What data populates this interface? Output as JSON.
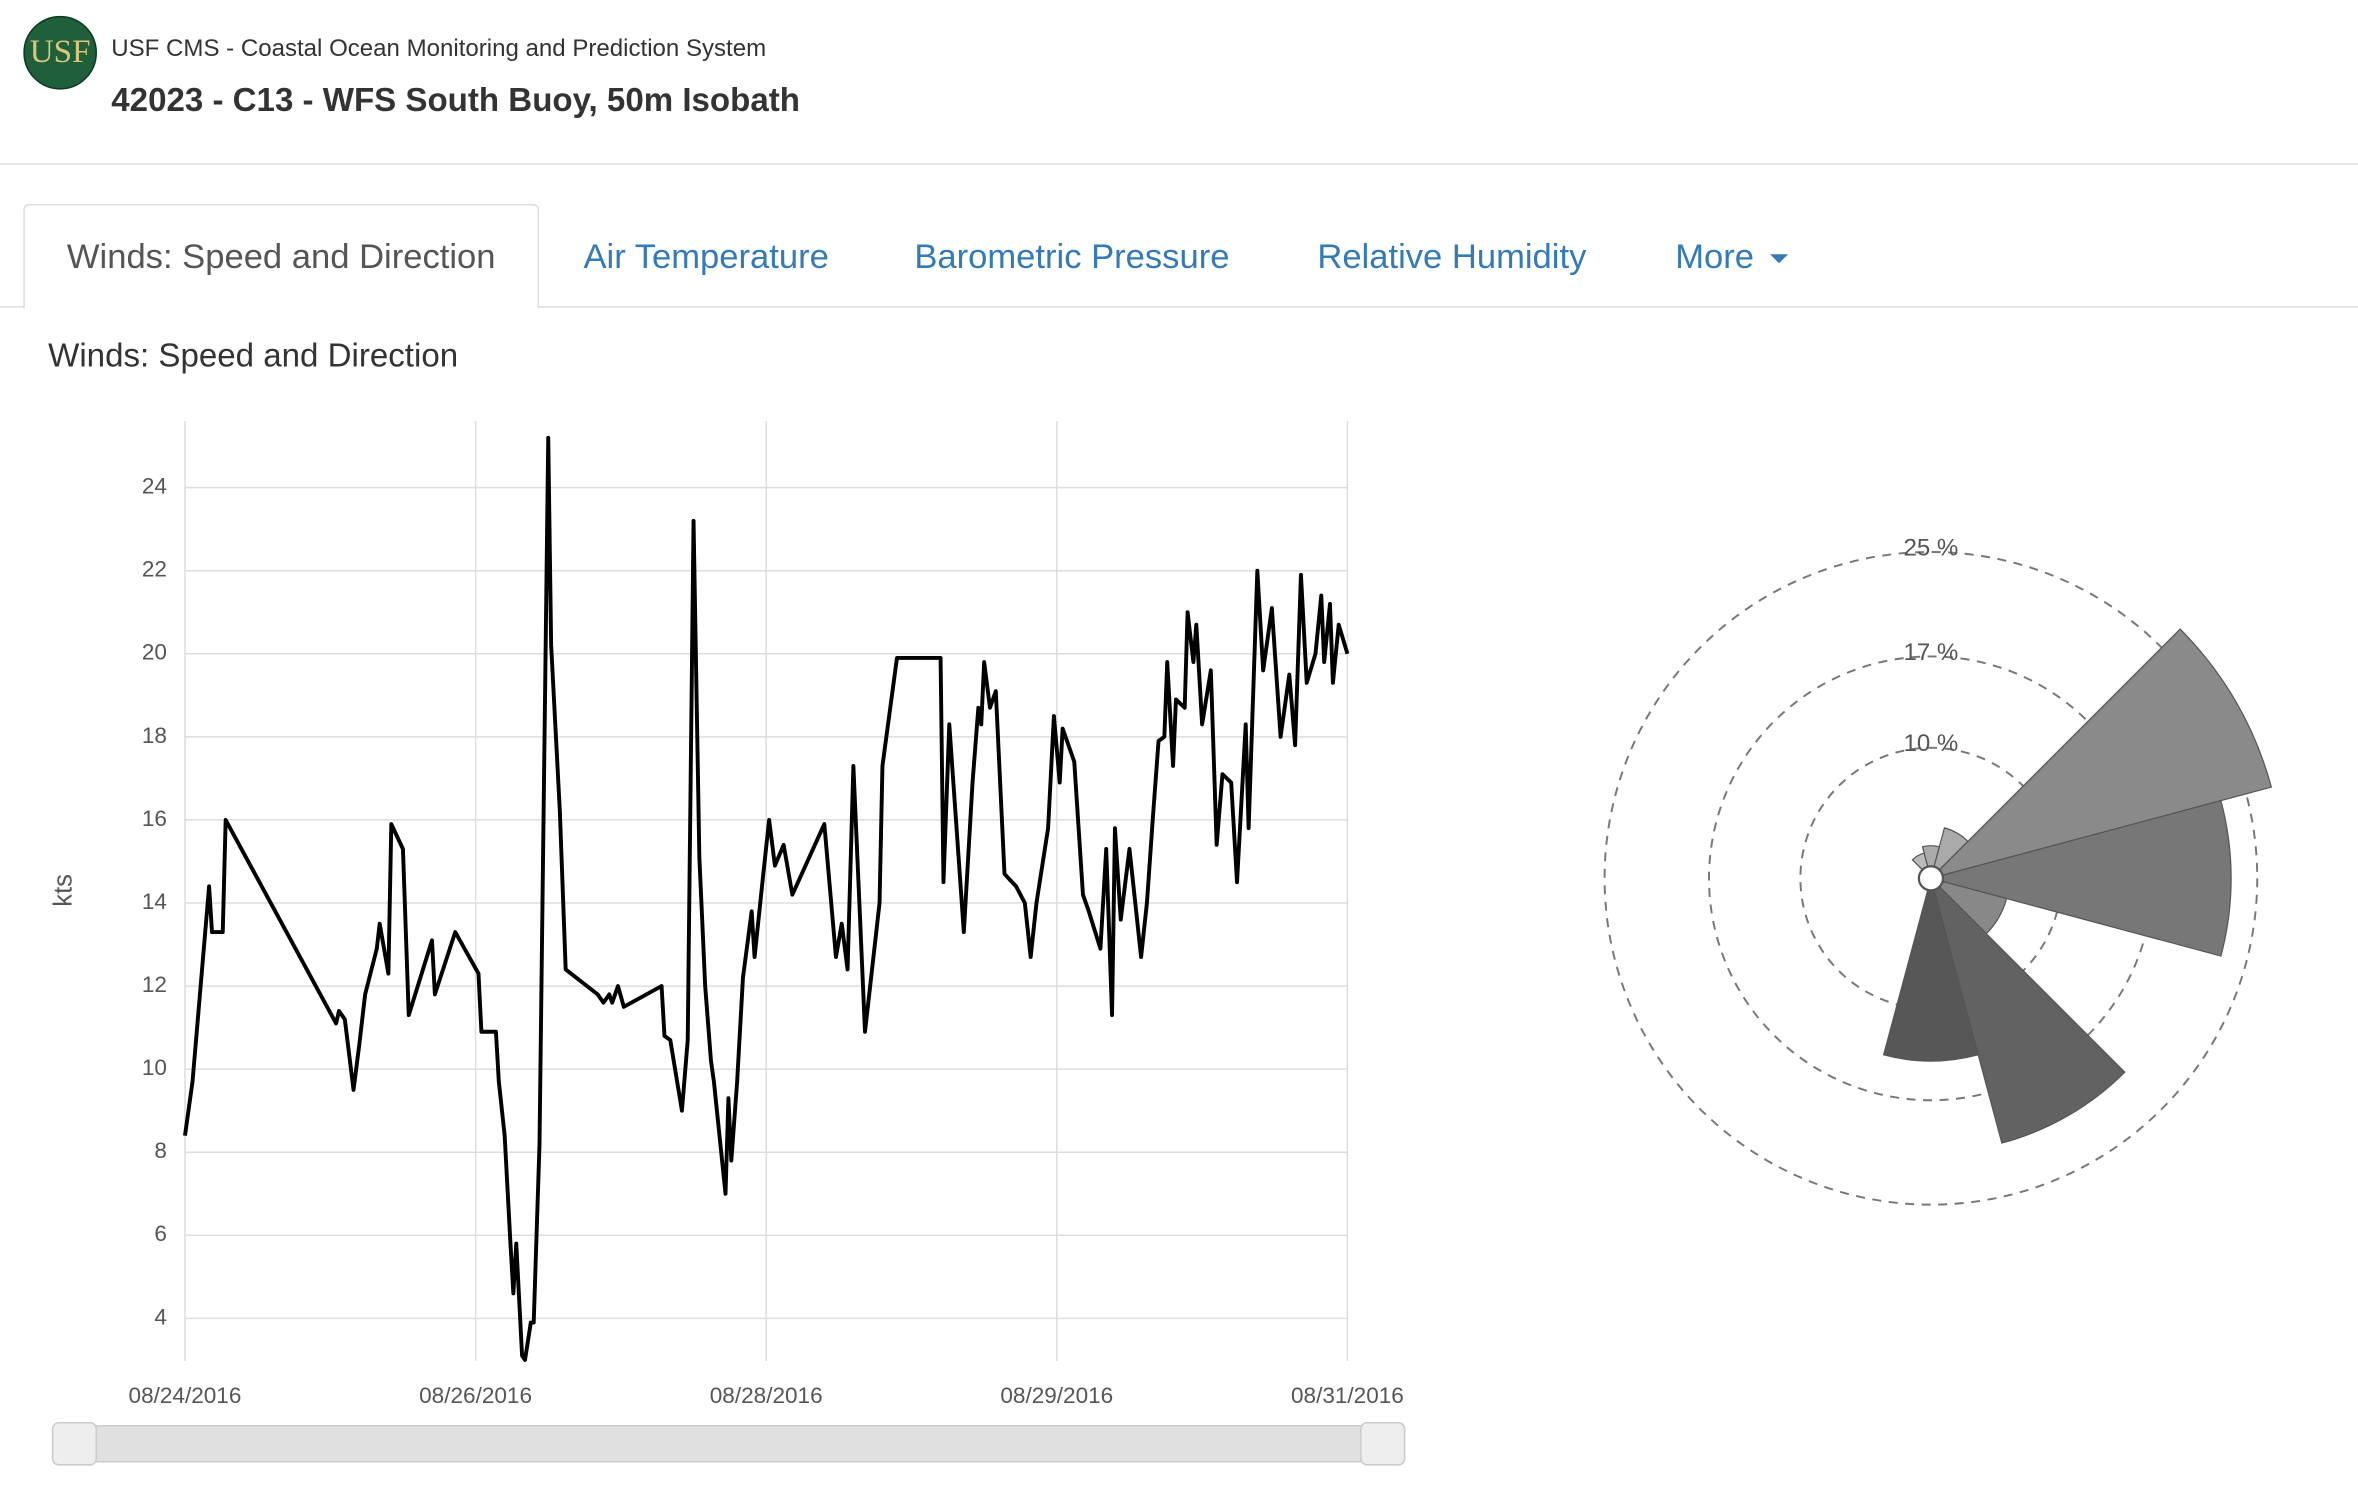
{
  "header": {
    "logo": "USF",
    "org": "USF CMS - Coastal Ocean Monitoring and Prediction System",
    "station": "42023 - C13 - WFS South Buoy, 50m Isobath"
  },
  "tabs": [
    "Winds: Speed and Direction",
    "Air Temperature",
    "Barometric Pressure",
    "Relative Humidity",
    "More"
  ],
  "section_title": "Winds: Speed and Direction",
  "chart_data": [
    {
      "type": "line",
      "ylabel": "kts",
      "x": [
        0,
        0.026,
        0.083,
        0.093,
        0.13,
        0.14,
        0.52,
        0.53,
        0.55,
        0.58,
        0.6,
        0.62,
        0.66,
        0.67,
        0.7,
        0.71,
        0.75,
        0.77,
        0.85,
        0.86,
        0.93,
        1.01,
        1.02,
        1.07,
        1.08,
        1.1,
        1.12,
        1.13,
        1.14,
        1.16,
        1.17,
        1.19,
        1.2,
        1.22,
        1.25,
        1.26,
        1.29,
        1.31,
        1.42,
        1.44,
        1.46,
        1.47,
        1.49,
        1.51,
        1.64,
        1.65,
        1.67,
        1.71,
        1.73,
        1.75,
        1.77,
        1.79,
        1.81,
        1.82,
        1.86,
        1.87,
        1.88,
        1.9,
        1.92,
        1.95,
        1.96,
        1.99,
        2.01,
        2.03,
        2.06,
        2.09,
        2.2,
        2.24,
        2.26,
        2.28,
        2.3,
        2.34,
        2.39,
        2.4,
        2.45,
        2.6,
        2.61,
        2.63,
        2.68,
        2.71,
        2.73,
        2.74,
        2.75,
        2.77,
        2.79,
        2.82,
        2.86,
        2.89,
        2.91,
        2.93,
        2.97,
        2.99,
        3.01,
        3.02,
        3.06,
        3.09,
        3.11,
        3.15,
        3.17,
        3.19,
        3.2,
        3.22,
        3.25,
        3.29,
        3.31,
        3.33,
        3.35,
        3.37,
        3.38,
        3.4,
        3.41,
        3.44,
        3.45,
        3.47,
        3.48,
        3.5,
        3.53,
        3.55,
        3.57,
        3.6,
        3.62,
        3.65,
        3.66,
        3.69,
        3.71,
        3.74,
        3.77,
        3.8,
        3.82,
        3.84,
        3.86,
        3.89,
        3.91,
        3.92,
        3.94,
        3.95,
        3.97,
        4
      ],
      "series": [
        {
          "color": "#000000",
          "values": [
            8.4,
            9.7,
            14.4,
            13.3,
            13.3,
            16.0,
            11.1,
            11.4,
            11.2,
            9.5,
            10.6,
            11.8,
            12.9,
            13.5,
            12.3,
            15.9,
            15.3,
            11.3,
            13.1,
            11.8,
            13.3,
            12.3,
            10.9,
            10.9,
            9.7,
            8.4,
            5.8,
            4.6,
            5.8,
            3.1,
            3.0,
            3.9,
            3.9,
            8.2,
            25.2,
            20.2,
            16.2,
            12.4,
            11.8,
            11.6,
            11.8,
            11.6,
            12.0,
            11.5,
            12.0,
            10.8,
            10.7,
            9.0,
            10.7,
            23.2,
            15.1,
            12.0,
            10.2,
            9.7,
            7.0,
            9.3,
            7.8,
            9.7,
            12.2,
            13.8,
            12.7,
            14.7,
            16.0,
            14.9,
            15.4,
            14.2,
            15.9,
            12.7,
            13.5,
            12.4,
            17.3,
            10.9,
            14.0,
            17.3,
            19.9,
            19.9,
            14.5,
            18.3,
            13.3,
            16.9,
            18.7,
            18.3,
            19.8,
            18.7,
            19.1,
            14.7,
            14.4,
            14.0,
            12.7,
            14.0,
            15.8,
            18.5,
            16.9,
            18.2,
            17.4,
            14.2,
            13.8,
            12.9,
            15.3,
            11.3,
            15.8,
            13.6,
            15.3,
            12.7,
            14.0,
            16.0,
            17.9,
            18.0,
            19.8,
            17.3,
            18.9,
            18.7,
            21.0,
            19.8,
            20.7,
            18.3,
            19.6,
            15.4,
            17.1,
            16.9,
            14.5,
            18.3,
            15.8,
            22.0,
            19.6,
            21.1,
            18.0,
            19.5,
            17.8,
            21.9,
            19.3,
            20.0,
            21.4,
            19.8,
            21.2,
            19.3,
            20.7,
            20.0
          ]
        }
      ],
      "xlim": [
        0,
        4
      ],
      "xticks": [
        {
          "value": 0,
          "label": "08/24/2016"
        },
        {
          "value": 1,
          "label": "08/26/2016"
        },
        {
          "value": 2,
          "label": "08/28/2016"
        },
        {
          "value": 3,
          "label": "08/29/2016"
        },
        {
          "value": 4,
          "label": "08/31/2016"
        }
      ],
      "ylim": [
        2.9,
        25.6
      ],
      "yticks": [
        4,
        6,
        8,
        10,
        12,
        14,
        16,
        18,
        20,
        22,
        24
      ],
      "grid": true
    },
    {
      "type": "windrose",
      "rlim": [
        0,
        25
      ],
      "rticks": [
        {
          "value": 10,
          "label": "10 %"
        },
        {
          "value": 17,
          "label": "17 %"
        },
        {
          "value": 25,
          "label": "25 %"
        }
      ],
      "sectors": [
        {
          "angle": 330,
          "value": 2,
          "color": "#bbbbbb"
        },
        {
          "angle": 0,
          "value": 2.5,
          "color": "#aaaaaa"
        },
        {
          "angle": 30,
          "value": 4,
          "color": "#aaaaaa"
        },
        {
          "angle": 60,
          "value": 27,
          "color": "#8a8a8a"
        },
        {
          "angle": 90,
          "value": 23,
          "color": "#777777"
        },
        {
          "angle": 120,
          "value": 6,
          "color": "#888888"
        },
        {
          "angle": 150,
          "value": 21,
          "color": "#626262"
        },
        {
          "angle": 180,
          "value": 14,
          "color": "#575757"
        }
      ]
    }
  ]
}
